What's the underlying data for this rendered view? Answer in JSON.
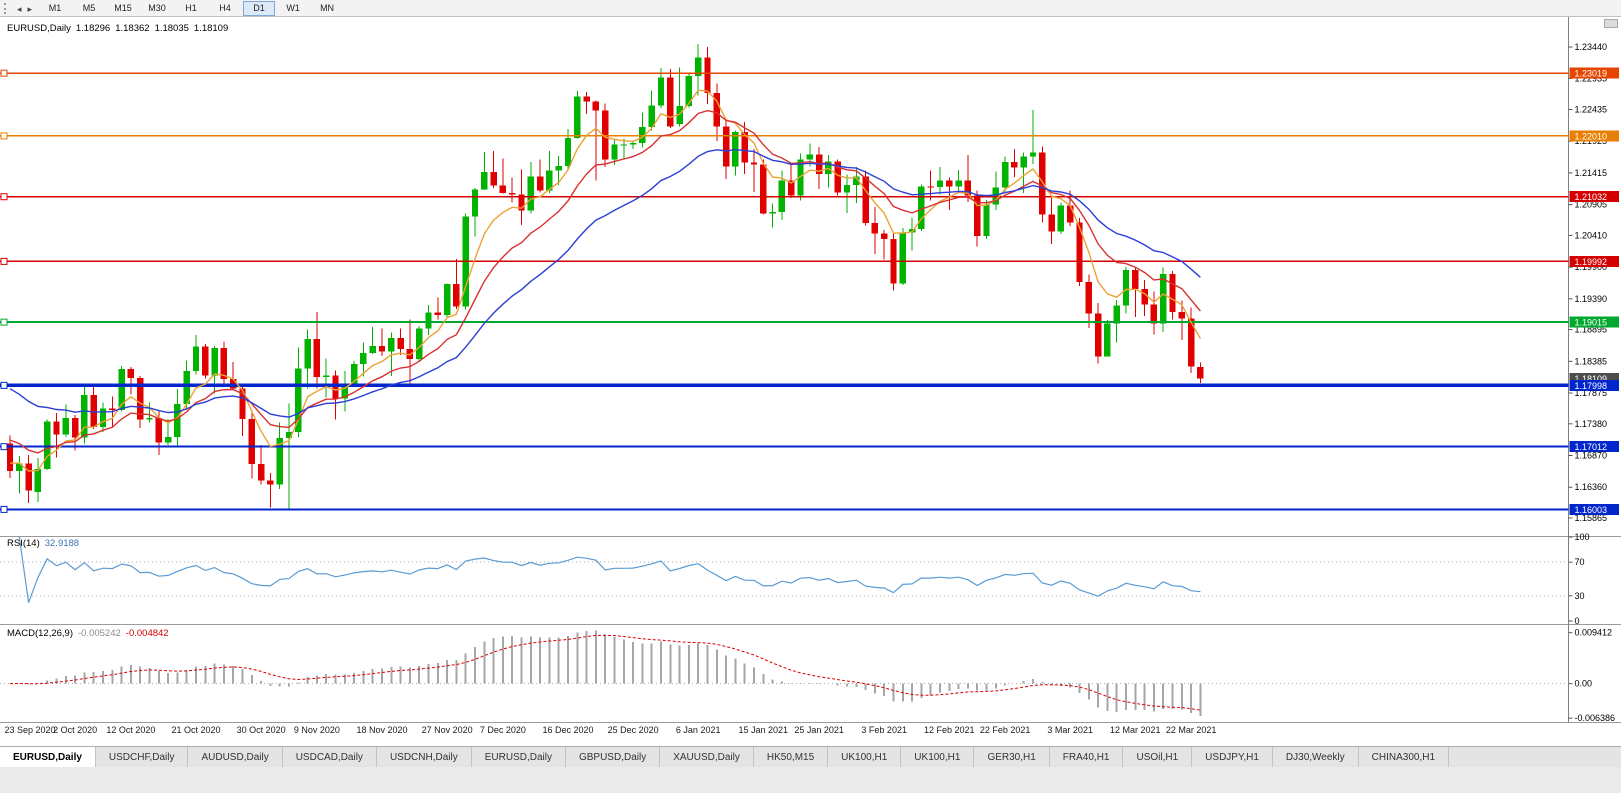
{
  "toolbar": {
    "icons": [
      {
        "name": "scroll-left-icon",
        "glyph": "◂"
      },
      {
        "name": "scroll-right-icon",
        "glyph": "▸"
      }
    ],
    "timeframes": [
      {
        "label": "M1",
        "active": false
      },
      {
        "label": "M5",
        "active": false
      },
      {
        "label": "M15",
        "active": false
      },
      {
        "label": "M30",
        "active": false
      },
      {
        "label": "H1",
        "active": false
      },
      {
        "label": "H4",
        "active": false
      },
      {
        "label": "D1",
        "active": true
      },
      {
        "label": "W1",
        "active": false
      },
      {
        "label": "MN",
        "active": false
      }
    ]
  },
  "chart": {
    "symbol": "EURUSD,Daily",
    "open": "1.18296",
    "high": "1.18362",
    "low": "1.18035",
    "close": "1.18109"
  },
  "chart_data": {
    "type": "candlestick",
    "title": "EURUSD Daily",
    "colors": {
      "bull": "#00B300",
      "bear": "#E00000"
    },
    "y_axis_ticks": [
      "1.23440",
      "1.22935",
      "1.22435",
      "1.21925",
      "1.21415",
      "1.20905",
      "1.20410",
      "1.19900",
      "1.19390",
      "1.18895",
      "1.18385",
      "1.17875",
      "1.17380",
      "1.16870",
      "1.16360",
      "1.15865"
    ],
    "price_range": {
      "max": 1.237777,
      "min": 1.156237
    },
    "x_ticks": [
      {
        "i": 0,
        "label": "23 Sep 2020"
      },
      {
        "i": 7,
        "label": "2 Oct 2020"
      },
      {
        "i": 13,
        "label": "12 Oct 2020"
      },
      {
        "i": 20,
        "label": "21 Oct 2020"
      },
      {
        "i": 27,
        "label": "30 Oct 2020"
      },
      {
        "i": 33,
        "label": "9 Nov 2020"
      },
      {
        "i": 40,
        "label": "18 Nov 2020"
      },
      {
        "i": 47,
        "label": "27 Nov 2020"
      },
      {
        "i": 53,
        "label": "7 Dec 2020"
      },
      {
        "i": 60,
        "label": "16 Dec 2020"
      },
      {
        "i": 67,
        "label": "25 Dec 2020"
      },
      {
        "i": 74,
        "label": "6 Jan 2021"
      },
      {
        "i": 81,
        "label": "15 Jan 2021"
      },
      {
        "i": 87,
        "label": "25 Jan 2021"
      },
      {
        "i": 94,
        "label": "3 Feb 2021"
      },
      {
        "i": 101,
        "label": "12 Feb 2021"
      },
      {
        "i": 107,
        "label": "22 Feb 2021"
      },
      {
        "i": 114,
        "label": "3 Mar 2021"
      },
      {
        "i": 121,
        "label": "12 Mar 2021"
      },
      {
        "i": 127,
        "label": "22 Mar 2021"
      }
    ],
    "candles": [
      [
        1.1706,
        1.1719,
        1.1651,
        1.1662
      ],
      [
        1.1662,
        1.1686,
        1.1626,
        1.1674
      ],
      [
        1.1674,
        1.1688,
        1.1611,
        1.1631
      ],
      [
        1.1628,
        1.1683,
        1.1612,
        1.1665
      ],
      [
        1.1665,
        1.1745,
        1.1664,
        1.1742
      ],
      [
        1.1742,
        1.1755,
        1.1684,
        1.1721
      ],
      [
        1.1721,
        1.1769,
        1.1717,
        1.1747
      ],
      [
        1.1747,
        1.1752,
        1.1695,
        1.1716
      ],
      [
        1.1716,
        1.1797,
        1.1706,
        1.1784
      ],
      [
        1.1784,
        1.1798,
        1.173,
        1.1733
      ],
      [
        1.1733,
        1.1772,
        1.1725,
        1.1763
      ],
      [
        1.1763,
        1.1782,
        1.1733,
        1.176
      ],
      [
        1.176,
        1.1831,
        1.1758,
        1.1826
      ],
      [
        1.1826,
        1.1829,
        1.1785,
        1.1812
      ],
      [
        1.1812,
        1.1815,
        1.1731,
        1.1745
      ],
      [
        1.1745,
        1.1772,
        1.174,
        1.1747
      ],
      [
        1.1747,
        1.1758,
        1.1688,
        1.1708
      ],
      [
        1.1708,
        1.1746,
        1.1704,
        1.1717
      ],
      [
        1.1717,
        1.1794,
        1.1702,
        1.177
      ],
      [
        1.177,
        1.184,
        1.176,
        1.1823
      ],
      [
        1.1823,
        1.1881,
        1.1817,
        1.1862
      ],
      [
        1.1862,
        1.1866,
        1.1811,
        1.1816
      ],
      [
        1.1816,
        1.1863,
        1.1787,
        1.186
      ],
      [
        1.186,
        1.187,
        1.1802,
        1.181
      ],
      [
        1.181,
        1.1837,
        1.1794,
        1.1795
      ],
      [
        1.1795,
        1.18,
        1.1718,
        1.1746
      ],
      [
        1.1746,
        1.1759,
        1.165,
        1.1673
      ],
      [
        1.1673,
        1.1704,
        1.164,
        1.1647
      ],
      [
        1.1647,
        1.1659,
        1.1603,
        1.164
      ],
      [
        1.164,
        1.174,
        1.1633,
        1.1715
      ],
      [
        1.1715,
        1.1771,
        1.1602,
        1.1725
      ],
      [
        1.1725,
        1.1861,
        1.1717,
        1.1827
      ],
      [
        1.1827,
        1.189,
        1.1795,
        1.1874
      ],
      [
        1.1874,
        1.1918,
        1.1795,
        1.1813
      ],
      [
        1.1813,
        1.1843,
        1.178,
        1.1816
      ],
      [
        1.1816,
        1.1824,
        1.1745,
        1.1779
      ],
      [
        1.1779,
        1.1823,
        1.1758,
        1.1802
      ],
      [
        1.1802,
        1.1839,
        1.1799,
        1.1834
      ],
      [
        1.1834,
        1.1869,
        1.1814,
        1.1852
      ],
      [
        1.1852,
        1.1894,
        1.185,
        1.1863
      ],
      [
        1.1863,
        1.1891,
        1.1847,
        1.1854
      ],
      [
        1.1854,
        1.1885,
        1.1815,
        1.1876
      ],
      [
        1.1876,
        1.1891,
        1.1849,
        1.1858
      ],
      [
        1.1858,
        1.1906,
        1.18,
        1.1842
      ],
      [
        1.1842,
        1.1895,
        1.1839,
        1.1891
      ],
      [
        1.1891,
        1.1929,
        1.1881,
        1.1917
      ],
      [
        1.1917,
        1.1941,
        1.1906,
        1.1913
      ],
      [
        1.1913,
        1.1964,
        1.1907,
        1.1963
      ],
      [
        1.1963,
        1.2003,
        1.1923,
        1.1927
      ],
      [
        1.1927,
        1.2076,
        1.1922,
        1.2071
      ],
      [
        1.2071,
        1.2117,
        1.2039,
        1.2115
      ],
      [
        1.2115,
        1.2175,
        1.2114,
        1.2143
      ],
      [
        1.2143,
        1.2177,
        1.2117,
        1.2121
      ],
      [
        1.2121,
        1.2165,
        1.2108,
        1.2109
      ],
      [
        1.2109,
        1.2134,
        1.2094,
        1.2107
      ],
      [
        1.2107,
        1.2147,
        1.2058,
        1.2081
      ],
      [
        1.2081,
        1.2159,
        1.2076,
        1.2136
      ],
      [
        1.2136,
        1.2163,
        1.211,
        1.2113
      ],
      [
        1.2113,
        1.2177,
        1.2109,
        1.2145
      ],
      [
        1.2145,
        1.2169,
        1.2122,
        1.2153
      ],
      [
        1.2153,
        1.2212,
        1.2145,
        1.2198
      ],
      [
        1.2198,
        1.2273,
        1.2197,
        1.2264
      ],
      [
        1.2264,
        1.2272,
        1.2236,
        1.2256
      ],
      [
        1.2256,
        1.2258,
        1.2129,
        1.2242
      ],
      [
        1.2242,
        1.2253,
        1.2151,
        1.2163
      ],
      [
        1.2163,
        1.2196,
        1.2154,
        1.2187
      ],
      [
        1.2187,
        1.2197,
        1.2163,
        1.2187
      ],
      [
        1.2187,
        1.2194,
        1.218,
        1.219
      ],
      [
        1.219,
        1.2239,
        1.2182,
        1.2215
      ],
      [
        1.2215,
        1.2274,
        1.221,
        1.225
      ],
      [
        1.225,
        1.231,
        1.2246,
        1.2295
      ],
      [
        1.2295,
        1.2309,
        1.2214,
        1.2216
      ],
      [
        1.222,
        1.2311,
        1.2216,
        1.2249
      ],
      [
        1.2249,
        1.2303,
        1.2247,
        1.2297
      ],
      [
        1.2297,
        1.2349,
        1.2266,
        1.2327
      ],
      [
        1.2327,
        1.2344,
        1.2252,
        1.227
      ],
      [
        1.227,
        1.2285,
        1.2193,
        1.2216
      ],
      [
        1.2216,
        1.2228,
        1.2132,
        1.2152
      ],
      [
        1.2152,
        1.221,
        1.2137,
        1.2207
      ],
      [
        1.2207,
        1.2223,
        1.214,
        1.2158
      ],
      [
        1.2158,
        1.218,
        1.2111,
        1.2155
      ],
      [
        1.2155,
        1.2163,
        1.2075,
        1.2076
      ],
      [
        1.2076,
        1.2092,
        1.2054,
        1.2079
      ],
      [
        1.2079,
        1.2145,
        1.2066,
        1.2129
      ],
      [
        1.2129,
        1.2158,
        1.2101,
        1.2105
      ],
      [
        1.2105,
        1.2173,
        1.2097,
        1.2163
      ],
      [
        1.2163,
        1.2189,
        1.2152,
        1.2171
      ],
      [
        1.2171,
        1.2183,
        1.2116,
        1.214
      ],
      [
        1.214,
        1.217,
        1.2118,
        1.216
      ],
      [
        1.216,
        1.2163,
        1.2105,
        1.211
      ],
      [
        1.211,
        1.2139,
        1.2077,
        1.2122
      ],
      [
        1.2122,
        1.2151,
        1.2093,
        1.2136
      ],
      [
        1.2136,
        1.2145,
        1.2057,
        1.2061
      ],
      [
        1.2061,
        1.2087,
        1.2011,
        1.2044
      ],
      [
        1.2044,
        1.205,
        1.2002,
        1.2035
      ],
      [
        1.2035,
        1.2043,
        1.1952,
        1.1964
      ],
      [
        1.1964,
        1.2053,
        1.1961,
        1.2046
      ],
      [
        1.2046,
        1.207,
        1.2017,
        1.2051
      ],
      [
        1.2051,
        1.2123,
        1.2048,
        1.212
      ],
      [
        1.212,
        1.2145,
        1.2097,
        1.2119
      ],
      [
        1.2119,
        1.2151,
        1.2107,
        1.2129
      ],
      [
        1.2129,
        1.2134,
        1.2082,
        1.212
      ],
      [
        1.212,
        1.2146,
        1.211,
        1.2129
      ],
      [
        1.2129,
        1.217,
        1.2095,
        1.2105
      ],
      [
        1.2105,
        1.2113,
        1.2023,
        1.204
      ],
      [
        1.204,
        1.2098,
        1.2035,
        1.2091
      ],
      [
        1.2091,
        1.2144,
        1.2082,
        1.2118
      ],
      [
        1.2118,
        1.2168,
        1.2108,
        1.2159
      ],
      [
        1.2159,
        1.218,
        1.2135,
        1.215
      ],
      [
        1.215,
        1.2174,
        1.2109,
        1.2168
      ],
      [
        1.2168,
        1.2243,
        1.2156,
        1.2174
      ],
      [
        1.2174,
        1.2184,
        1.2062,
        1.2075
      ],
      [
        1.2075,
        1.2101,
        1.2027,
        1.2047
      ],
      [
        1.2047,
        1.2094,
        1.2043,
        1.2089
      ],
      [
        1.2089,
        1.2113,
        1.2056,
        1.2062
      ],
      [
        1.2062,
        1.2069,
        1.196,
        1.1966
      ],
      [
        1.1966,
        1.1978,
        1.1892,
        1.1915
      ],
      [
        1.1915,
        1.1932,
        1.1835,
        1.1846
      ],
      [
        1.1846,
        1.1905,
        1.1846,
        1.1899
      ],
      [
        1.1899,
        1.1937,
        1.1869,
        1.1928
      ],
      [
        1.1928,
        1.199,
        1.1915,
        1.1985
      ],
      [
        1.1985,
        1.199,
        1.191,
        1.1955
      ],
      [
        1.1955,
        1.1969,
        1.1911,
        1.193
      ],
      [
        1.193,
        1.1951,
        1.1882,
        1.1899
      ],
      [
        1.1899,
        1.1989,
        1.1886,
        1.1979
      ],
      [
        1.1979,
        1.1984,
        1.1906,
        1.1918
      ],
      [
        1.1918,
        1.1936,
        1.1873,
        1.1907
      ],
      [
        1.1907,
        1.1925,
        1.182,
        1.183
      ],
      [
        1.18296,
        1.18362,
        1.18035,
        1.18109
      ]
    ],
    "overlays": [
      {
        "name": "ma-fast-line",
        "period": 6,
        "seed": 1.168,
        "color": "#ECA233"
      },
      {
        "name": "ma-mid-line",
        "period": 13,
        "seed": 1.172,
        "color": "#D93030"
      },
      {
        "name": "ma-slow-line",
        "period": 26,
        "seed": 1.1805,
        "color": "#2B3FD6"
      }
    ],
    "hlines": [
      {
        "label": "1.23019",
        "color": "#E64500",
        "width": 1.6
      },
      {
        "label": "1.22010",
        "color": "#E87F00",
        "width": 1.6
      },
      {
        "label": "1.21032",
        "color": "#D40000",
        "width": 1.6
      },
      {
        "label": "1.19992",
        "color": "#D40000",
        "width": 1.6
      },
      {
        "label": "1.19015",
        "color": "#00A82D",
        "width": 1.8
      },
      {
        "label": "1.17998",
        "color": "#0026CC",
        "width": 3.5
      },
      {
        "label": "1.17012",
        "color": "#0026CC",
        "width": 2
      },
      {
        "label": "1.16003",
        "color": "#0026CC",
        "width": 2
      }
    ],
    "current_price": {
      "label": "1.18109",
      "color": "#4D4D4D"
    },
    "rsi": {
      "label": "RSI(14)",
      "value": "32.9188",
      "period": 14,
      "levels": [
        100,
        70,
        30,
        0
      ],
      "dotted_levels": [
        70,
        30
      ],
      "color": "#5B9BD5"
    },
    "macd": {
      "label": "MACD(12,26,9)",
      "main_value": "-0.005242",
      "signal_value": "-0.004842",
      "fast": 12,
      "slow": 26,
      "signal": 9,
      "hist_color": "#A6A6A6",
      "signal_color": "#DD0000",
      "y_ticks": [
        {
          "v": 0.009412,
          "label": "0.009412"
        },
        {
          "v": 0,
          "label": "0.00"
        },
        {
          "v": -0.006386,
          "label": "-0.006386"
        }
      ],
      "range": {
        "max": 0.0101,
        "min": -0.0071
      }
    }
  },
  "tabs": [
    {
      "label": "EURUSD,Daily",
      "active": true
    },
    {
      "label": "USDCHF,Daily",
      "active": false
    },
    {
      "label": "AUDUSD,Daily",
      "active": false
    },
    {
      "label": "USDCAD,Daily",
      "active": false
    },
    {
      "label": "USDCNH,Daily",
      "active": false
    },
    {
      "label": "EURUSD,Daily",
      "active": false
    },
    {
      "label": "GBPUSD,Daily",
      "active": false
    },
    {
      "label": "XAUUSD,Daily",
      "active": false
    },
    {
      "label": "HK50,M15",
      "active": false
    },
    {
      "label": "UK100,H1",
      "active": false
    },
    {
      "label": "UK100,H1",
      "active": false
    },
    {
      "label": "GER30,H1",
      "active": false
    },
    {
      "label": "FRA40,H1",
      "active": false
    },
    {
      "label": "USOil,H1",
      "active": false
    },
    {
      "label": "USDJPY,H1",
      "active": false
    },
    {
      "label": "DJ30,Weekly",
      "active": false
    },
    {
      "label": "CHINA300,H1",
      "active": false
    }
  ]
}
